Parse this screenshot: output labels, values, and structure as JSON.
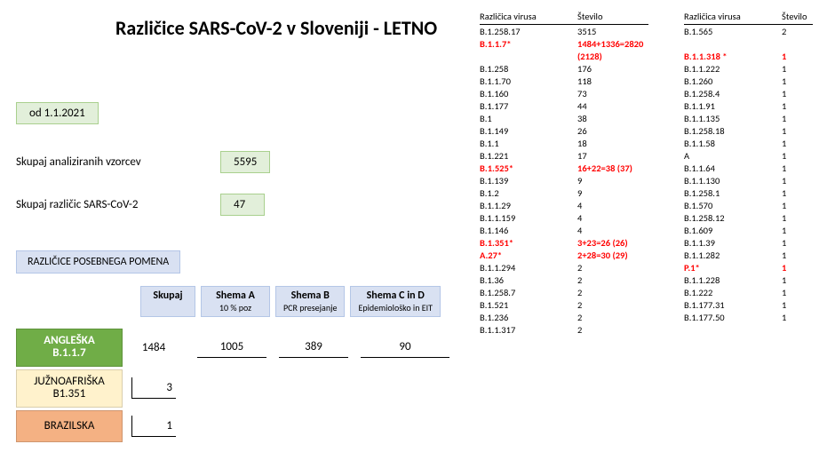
{
  "title": "Različice SARS-CoV-2 v Sloveniji - LETNO",
  "date_label": "od 1.1.2021",
  "stats": {
    "samples_label": "Skupaj analiziranih vzorcev",
    "samples_value": "5595",
    "variants_label": "Skupaj različic SARS-CoV-2",
    "variants_value": "47"
  },
  "section_header": "RAZLIČICE POSEBNEGA POMENA",
  "schema_headers": [
    {
      "title": "Skupaj",
      "sub": ""
    },
    {
      "title": "Shema A",
      "sub": "10 % poz"
    },
    {
      "title": "Shema B",
      "sub": "PCR presejanje"
    },
    {
      "title": "Shema C in D",
      "sub": "Epidemiološko in EIT"
    }
  ],
  "variants_of_concern": {
    "english": {
      "name": "ANGLEŠKA",
      "lineage": "B.1.1.7",
      "total": "1484",
      "a": "1005",
      "b": "389",
      "cd": "90"
    },
    "sa": {
      "name": "JUŽNOAFRIŠKA",
      "lineage": "B1.351",
      "total": "3"
    },
    "br": {
      "name": "BRAZILSKA",
      "total": "1"
    }
  },
  "table_headers": {
    "variant": "Različica virusa",
    "count": "Število"
  },
  "table1": [
    {
      "v": "B.1.258.17",
      "n": "3515"
    },
    {
      "v": "B.1.1.7*",
      "n": "1484+1336=2820 (2128)",
      "red": true
    },
    {
      "v": "B.1.258",
      "n": "176"
    },
    {
      "v": "B.1.1.70",
      "n": "118"
    },
    {
      "v": "B.1.160",
      "n": "73"
    },
    {
      "v": "B.1.177",
      "n": "44"
    },
    {
      "v": "B.1",
      "n": "38"
    },
    {
      "v": "B.1.149",
      "n": "26"
    },
    {
      "v": "B.1.1",
      "n": "18"
    },
    {
      "v": "B.1.221",
      "n": "17"
    },
    {
      "v": "B.1.525*",
      "n": "16+22=38 (37)",
      "red": true
    },
    {
      "v": "B.1.139",
      "n": "9"
    },
    {
      "v": "B.1.2",
      "n": "9"
    },
    {
      "v": "B.1.1.29",
      "n": "4"
    },
    {
      "v": "B.1.1.159",
      "n": "4"
    },
    {
      "v": "B.1.146",
      "n": "4"
    },
    {
      "v": "B.1.351*",
      "n": "3+23=26 (26)",
      "red": true
    },
    {
      "v": "A.27*",
      "n": "2+28=30 (29)",
      "red": true
    },
    {
      "v": "B.1.1.294",
      "n": "2"
    },
    {
      "v": "B.1.36",
      "n": "2"
    },
    {
      "v": "B.1.258.7",
      "n": "2"
    },
    {
      "v": "B.1.521",
      "n": "2"
    },
    {
      "v": "B.1.236",
      "n": "2"
    },
    {
      "v": "B.1.1.317",
      "n": "2"
    }
  ],
  "table2": [
    {
      "v": "B.1.565",
      "n": "2"
    },
    {
      "v": "",
      "n": ""
    },
    {
      "v": "B.1.1.318 *",
      "n": "1",
      "red": true
    },
    {
      "v": "B.1.1.222",
      "n": "1"
    },
    {
      "v": "B.1.260",
      "n": "1"
    },
    {
      "v": "B.1.258.4",
      "n": "1"
    },
    {
      "v": "B.1.1.91",
      "n": "1"
    },
    {
      "v": "B.1.1.135",
      "n": "1"
    },
    {
      "v": "B.1.258.18",
      "n": "1"
    },
    {
      "v": "B.1.1.58",
      "n": "1"
    },
    {
      "v": "A",
      "n": "1"
    },
    {
      "v": "B.1.1.64",
      "n": "1"
    },
    {
      "v": "B.1.1.130",
      "n": "1"
    },
    {
      "v": "B.1.258.1",
      "n": "1"
    },
    {
      "v": "B.1.570",
      "n": "1"
    },
    {
      "v": "B.1.258.12",
      "n": "1"
    },
    {
      "v": "B.1.609",
      "n": "1"
    },
    {
      "v": "B.1.1.39",
      "n": "1"
    },
    {
      "v": "B.1.1.282",
      "n": "1"
    },
    {
      "v": "P.1*",
      "n": "1",
      "red": true
    },
    {
      "v": "B.1.1.228",
      "n": "1"
    },
    {
      "v": "B.1.222",
      "n": "1"
    },
    {
      "v": "B.1.177.31",
      "n": "1"
    },
    {
      "v": "B.1.177.50",
      "n": "1"
    }
  ],
  "colors": {
    "green_box_bg": "#e2efda",
    "green_box_border": "#a9d08e",
    "blue_box_bg": "#d9e1f2",
    "blue_box_border": "#b4c6e7",
    "english_bg": "#70ad47",
    "sa_bg": "#fff2cc",
    "br_bg": "#f4b183",
    "red_text": "#ff0000"
  }
}
